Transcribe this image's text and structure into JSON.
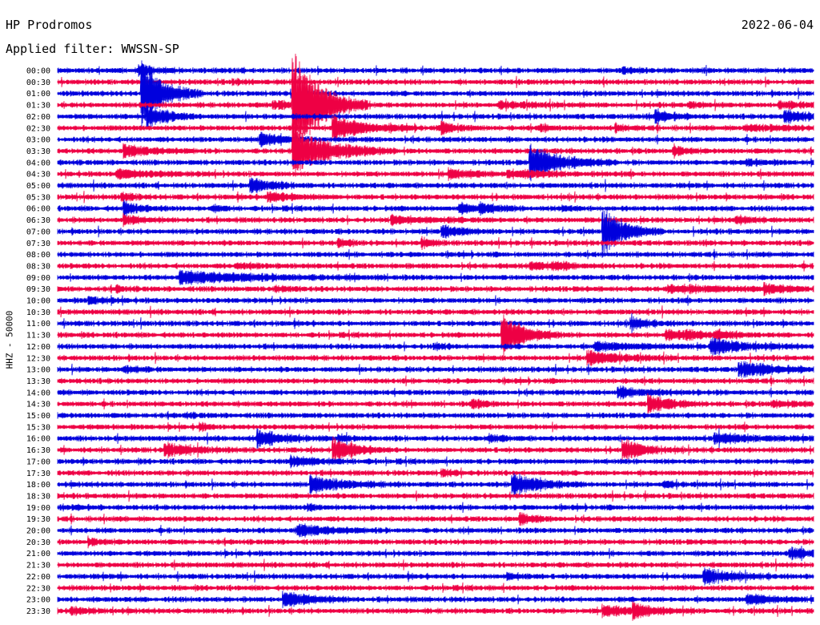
{
  "header": {
    "station": "HP Prodromos",
    "date": "2022-06-04",
    "filter": "Applied filter: WWSSN-SP"
  },
  "axis": {
    "ylabel": "HHZ - 50000"
  },
  "colors": {
    "blue": "#0000dd",
    "red": "#ee0044",
    "background": "#ffffff"
  },
  "chart_data": {
    "type": "line",
    "subtype": "helicorder",
    "title": "HP Prodromos",
    "ylabel": "HHZ - 50000",
    "row_labels": [
      "00:00",
      "00:30",
      "01:00",
      "01:30",
      "02:00",
      "02:30",
      "03:00",
      "03:30",
      "04:00",
      "04:30",
      "05:00",
      "05:30",
      "06:00",
      "06:30",
      "07:00",
      "07:30",
      "08:00",
      "08:30",
      "09:00",
      "09:30",
      "10:00",
      "10:30",
      "11:00",
      "11:30",
      "12:00",
      "12:30",
      "13:00",
      "13:30",
      "14:00",
      "14:30",
      "15:00",
      "15:30",
      "16:00",
      "16:30",
      "17:00",
      "17:30",
      "18:00",
      "18:30",
      "19:00",
      "19:30",
      "20:00",
      "20:30",
      "21:00",
      "21:30",
      "22:00",
      "22:30",
      "23:00",
      "23:30"
    ],
    "row_colors": [
      "blue",
      "red"
    ],
    "minutes_per_row": 30,
    "events": [
      {
        "row": 0,
        "minute": 3.2,
        "amp": 1.0,
        "dur": 0.6
      },
      {
        "row": 0,
        "minute": 22.4,
        "amp": 0.4,
        "dur": 0.5
      },
      {
        "row": 1,
        "minute": 6.9,
        "amp": 0.3,
        "dur": 0.5
      },
      {
        "row": 2,
        "minute": 3.3,
        "amp": 6.0,
        "dur": 0.8
      },
      {
        "row": 3,
        "minute": 8.5,
        "amp": 0.6,
        "dur": 1.0
      },
      {
        "row": 3,
        "minute": 9.3,
        "amp": 10.0,
        "dur": 1.0
      },
      {
        "row": 3,
        "minute": 17.5,
        "amp": 0.5,
        "dur": 1.2
      },
      {
        "row": 3,
        "minute": 25.0,
        "amp": 0.4,
        "dur": 0.5
      },
      {
        "row": 3,
        "minute": 28.6,
        "amp": 0.5,
        "dur": 1.4
      },
      {
        "row": 4,
        "minute": 3.5,
        "amp": 2.0,
        "dur": 0.8
      },
      {
        "row": 4,
        "minute": 23.7,
        "amp": 1.2,
        "dur": 0.6
      },
      {
        "row": 4,
        "minute": 28.8,
        "amp": 1.0,
        "dur": 1.2
      },
      {
        "row": 5,
        "minute": 10.9,
        "amp": 2.0,
        "dur": 1.2
      },
      {
        "row": 5,
        "minute": 15.2,
        "amp": 1.2,
        "dur": 0.6
      },
      {
        "row": 5,
        "minute": 19.1,
        "amp": 0.6,
        "dur": 0.4
      },
      {
        "row": 5,
        "minute": 22.1,
        "amp": 0.6,
        "dur": 0.4
      },
      {
        "row": 5,
        "minute": 27.2,
        "amp": 0.4,
        "dur": 2.0
      },
      {
        "row": 6,
        "minute": 8.0,
        "amp": 1.2,
        "dur": 0.8
      },
      {
        "row": 7,
        "minute": 2.6,
        "amp": 1.0,
        "dur": 1.0
      },
      {
        "row": 7,
        "minute": 9.3,
        "amp": 4.0,
        "dur": 1.4
      },
      {
        "row": 7,
        "minute": 24.4,
        "amp": 1.0,
        "dur": 0.4
      },
      {
        "row": 8,
        "minute": 18.7,
        "amp": 3.0,
        "dur": 1.2
      },
      {
        "row": 8,
        "minute": 27.3,
        "amp": 0.5,
        "dur": 0.6
      },
      {
        "row": 9,
        "minute": 2.3,
        "amp": 0.7,
        "dur": 1.4
      },
      {
        "row": 9,
        "minute": 15.5,
        "amp": 1.0,
        "dur": 0.8
      },
      {
        "row": 9,
        "minute": 17.8,
        "amp": 0.6,
        "dur": 1.6
      },
      {
        "row": 10,
        "minute": 7.6,
        "amp": 1.3,
        "dur": 0.8
      },
      {
        "row": 11,
        "minute": 2.5,
        "amp": 0.6,
        "dur": 0.5
      },
      {
        "row": 11,
        "minute": 8.3,
        "amp": 0.8,
        "dur": 1.0
      },
      {
        "row": 12,
        "minute": 2.6,
        "amp": 1.2,
        "dur": 0.6
      },
      {
        "row": 12,
        "minute": 6.1,
        "amp": 0.6,
        "dur": 0.4
      },
      {
        "row": 12,
        "minute": 15.9,
        "amp": 0.8,
        "dur": 0.8
      },
      {
        "row": 12,
        "minute": 16.7,
        "amp": 0.7,
        "dur": 0.6
      },
      {
        "row": 12,
        "minute": 20.0,
        "amp": 0.5,
        "dur": 0.4
      },
      {
        "row": 13,
        "minute": 2.6,
        "amp": 0.8,
        "dur": 0.6
      },
      {
        "row": 13,
        "minute": 13.2,
        "amp": 0.6,
        "dur": 1.6
      },
      {
        "row": 13,
        "minute": 26.9,
        "amp": 0.6,
        "dur": 0.6
      },
      {
        "row": 14,
        "minute": 15.2,
        "amp": 1.0,
        "dur": 0.8
      },
      {
        "row": 14,
        "minute": 21.6,
        "amp": 4.0,
        "dur": 0.8
      },
      {
        "row": 15,
        "minute": 11.1,
        "amp": 0.8,
        "dur": 0.4
      },
      {
        "row": 15,
        "minute": 14.4,
        "amp": 0.8,
        "dur": 0.4
      },
      {
        "row": 17,
        "minute": 7.0,
        "amp": 0.4,
        "dur": 1.0
      },
      {
        "row": 17,
        "minute": 18.7,
        "amp": 0.6,
        "dur": 0.8
      },
      {
        "row": 17,
        "minute": 19.6,
        "amp": 0.5,
        "dur": 0.8
      },
      {
        "row": 18,
        "minute": 4.8,
        "amp": 1.0,
        "dur": 3.0
      },
      {
        "row": 19,
        "minute": 2.3,
        "amp": 0.4,
        "dur": 0.4
      },
      {
        "row": 19,
        "minute": 8.6,
        "amp": 0.5,
        "dur": 0.5
      },
      {
        "row": 19,
        "minute": 24.2,
        "amp": 0.6,
        "dur": 2.4
      },
      {
        "row": 19,
        "minute": 28.0,
        "amp": 1.0,
        "dur": 0.6
      },
      {
        "row": 20,
        "minute": 1.2,
        "amp": 0.6,
        "dur": 0.6
      },
      {
        "row": 22,
        "minute": 22.7,
        "amp": 1.0,
        "dur": 0.6
      },
      {
        "row": 23,
        "minute": 17.6,
        "amp": 4.0,
        "dur": 0.8
      },
      {
        "row": 23,
        "minute": 24.1,
        "amp": 0.8,
        "dur": 1.0
      },
      {
        "row": 23,
        "minute": 24.9,
        "amp": 0.6,
        "dur": 0.6
      },
      {
        "row": 23,
        "minute": 26.1,
        "amp": 0.8,
        "dur": 0.6
      },
      {
        "row": 24,
        "minute": 14.9,
        "amp": 0.5,
        "dur": 0.4
      },
      {
        "row": 24,
        "minute": 21.3,
        "amp": 0.7,
        "dur": 1.4
      },
      {
        "row": 24,
        "minute": 25.9,
        "amp": 1.4,
        "dur": 1.2
      },
      {
        "row": 25,
        "minute": 21.0,
        "amp": 1.2,
        "dur": 1.2
      },
      {
        "row": 26,
        "minute": 2.6,
        "amp": 0.6,
        "dur": 0.6
      },
      {
        "row": 26,
        "minute": 27.0,
        "amp": 1.2,
        "dur": 1.4
      },
      {
        "row": 28,
        "minute": 22.2,
        "amp": 0.8,
        "dur": 1.2
      },
      {
        "row": 29,
        "minute": 16.4,
        "amp": 0.8,
        "dur": 0.5
      },
      {
        "row": 29,
        "minute": 23.4,
        "amp": 1.6,
        "dur": 0.8
      },
      {
        "row": 29,
        "minute": 28.3,
        "amp": 0.5,
        "dur": 1.0
      },
      {
        "row": 30,
        "minute": 5.0,
        "amp": 0.3,
        "dur": 0.5
      },
      {
        "row": 31,
        "minute": 5.6,
        "amp": 0.6,
        "dur": 0.3
      },
      {
        "row": 32,
        "minute": 7.9,
        "amp": 1.4,
        "dur": 1.0
      },
      {
        "row": 32,
        "minute": 11.1,
        "amp": 0.5,
        "dur": 0.5
      },
      {
        "row": 32,
        "minute": 17.1,
        "amp": 0.6,
        "dur": 0.5
      },
      {
        "row": 32,
        "minute": 26.0,
        "amp": 0.8,
        "dur": 1.6
      },
      {
        "row": 33,
        "minute": 4.2,
        "amp": 1.2,
        "dur": 1.0
      },
      {
        "row": 33,
        "minute": 10.9,
        "amp": 2.0,
        "dur": 0.8
      },
      {
        "row": 33,
        "minute": 22.4,
        "amp": 1.8,
        "dur": 0.8
      },
      {
        "row": 34,
        "minute": 9.2,
        "amp": 0.8,
        "dur": 1.2
      },
      {
        "row": 35,
        "minute": 15.2,
        "amp": 0.5,
        "dur": 0.6
      },
      {
        "row": 36,
        "minute": 10.0,
        "amp": 1.4,
        "dur": 1.2
      },
      {
        "row": 36,
        "minute": 18.0,
        "amp": 2.0,
        "dur": 1.0
      },
      {
        "row": 36,
        "minute": 24.0,
        "amp": 0.6,
        "dur": 0.4
      },
      {
        "row": 38,
        "minute": 0.6,
        "amp": 0.4,
        "dur": 0.4
      },
      {
        "row": 38,
        "minute": 9.9,
        "amp": 0.5,
        "dur": 0.4
      },
      {
        "row": 39,
        "minute": 18.3,
        "amp": 0.8,
        "dur": 0.6
      },
      {
        "row": 40,
        "minute": 9.5,
        "amp": 1.0,
        "dur": 1.2
      },
      {
        "row": 41,
        "minute": 1.2,
        "amp": 0.6,
        "dur": 0.4
      },
      {
        "row": 42,
        "minute": 29.0,
        "amp": 0.8,
        "dur": 1.0
      },
      {
        "row": 44,
        "minute": 17.8,
        "amp": 0.6,
        "dur": 0.5
      },
      {
        "row": 44,
        "minute": 25.6,
        "amp": 1.4,
        "dur": 1.0
      },
      {
        "row": 46,
        "minute": 8.9,
        "amp": 1.4,
        "dur": 1.0
      },
      {
        "row": 46,
        "minute": 27.3,
        "amp": 0.8,
        "dur": 1.0
      },
      {
        "row": 47,
        "minute": 0.5,
        "amp": 0.5,
        "dur": 0.8
      },
      {
        "row": 47,
        "minute": 21.6,
        "amp": 0.8,
        "dur": 1.4
      },
      {
        "row": 47,
        "minute": 22.8,
        "amp": 1.0,
        "dur": 0.8
      }
    ]
  }
}
